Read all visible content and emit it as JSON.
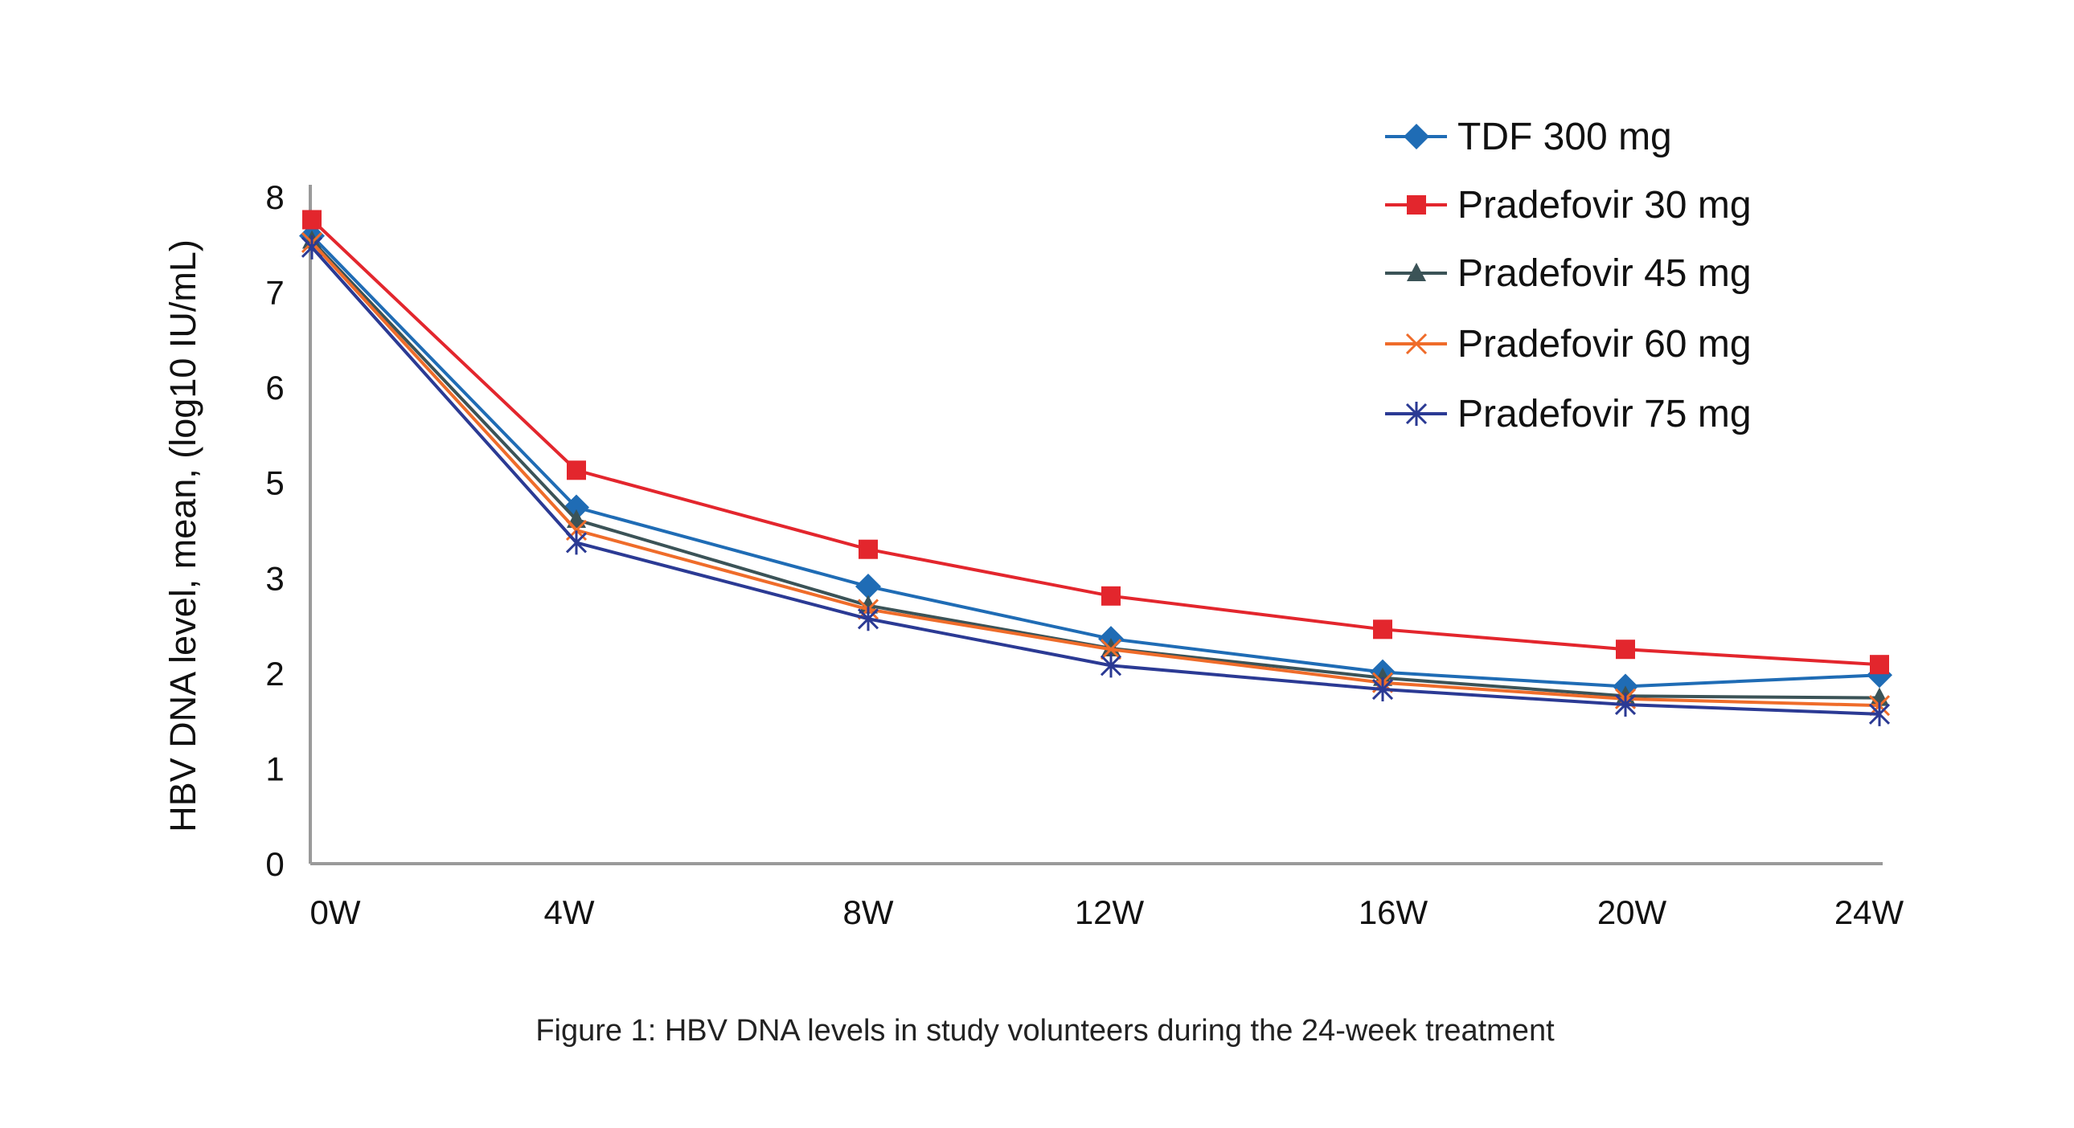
{
  "chart_data": {
    "type": "line",
    "title": "",
    "caption": "Figure 1: HBV DNA levels in study volunteers during the 24-week treatment",
    "xlabel": "",
    "ylabel": "HBV DNA level, mean, (log10 IU/mL)",
    "categories": [
      "0W",
      "4W",
      "8W",
      "12W",
      "16W",
      "20W",
      "24W"
    ],
    "yticks": [
      0,
      1,
      2,
      3,
      5,
      6,
      7,
      8
    ],
    "ylim": [
      0,
      8
    ],
    "grid": false,
    "legend_position": "top-right",
    "series": [
      {
        "name": "TDF 300 mg",
        "color": "#1f6cb5",
        "marker": "diamond",
        "values": [
          7.59,
          4.48,
          2.91,
          2.36,
          2.01,
          1.86,
          1.98
        ]
      },
      {
        "name": "Pradefovir  30 mg",
        "color": "#e3262d",
        "marker": "square",
        "values": [
          7.76,
          5.13,
          3.6,
          2.81,
          2.46,
          2.25,
          2.09
        ]
      },
      {
        "name": "Pradefovir  45 mg",
        "color": "#3b5357",
        "marker": "triangle",
        "values": [
          7.54,
          4.22,
          2.71,
          2.26,
          1.95,
          1.76,
          1.74
        ]
      },
      {
        "name": "Pradefovir  60 mg",
        "color": "#ef6c2a",
        "marker": "x",
        "values": [
          7.52,
          4.0,
          2.67,
          2.25,
          1.9,
          1.73,
          1.66
        ]
      },
      {
        "name": "Pradefovir  75 mg",
        "color": "#2b3a94",
        "marker": "star",
        "values": [
          7.47,
          3.74,
          2.57,
          2.08,
          1.83,
          1.67,
          1.57
        ]
      }
    ]
  }
}
